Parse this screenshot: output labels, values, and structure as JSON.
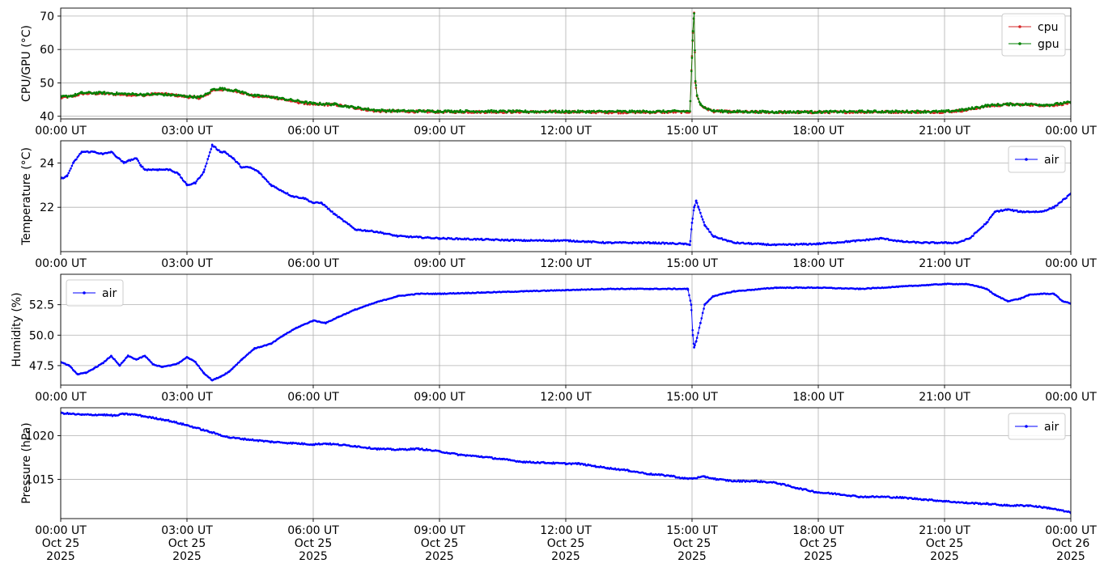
{
  "chart_data": [
    {
      "type": "line",
      "ylabel": "CPU/GPU (°C)",
      "ylim": [
        39.2,
        72.4
      ],
      "yticks": [
        40,
        50,
        60,
        70
      ],
      "ytick_labels": [
        "40",
        "50",
        "60",
        "70"
      ],
      "xlim": [
        0,
        24
      ],
      "xticks": [
        0,
        3,
        6,
        9,
        12,
        15,
        18,
        21,
        24
      ],
      "xtick_labels": [
        "00:00 UT",
        "03:00 UT",
        "06:00 UT",
        "09:00 UT",
        "12:00 UT",
        "15:00 UT",
        "18:00 UT",
        "21:00 UT",
        "00:00 UT"
      ],
      "grid": true,
      "legend_position": "top-right",
      "series": [
        {
          "name": "cpu",
          "color": "#d62728",
          "x": [
            0,
            0.3,
            0.5,
            1.0,
            1.5,
            2.0,
            2.3,
            2.6,
            3.0,
            3.3,
            3.5,
            3.6,
            3.8,
            4.2,
            4.6,
            5.0,
            5.5,
            6.0,
            6.5,
            7.0,
            7.5,
            8.0,
            9.0,
            10.0,
            11.0,
            12.0,
            13.0,
            14.0,
            14.95,
            15.0,
            15.02,
            15.05,
            15.08,
            15.12,
            15.2,
            15.3,
            15.5,
            16.0,
            17.0,
            18.0,
            19.0,
            20.0,
            21.0,
            21.5,
            22.0,
            22.5,
            23.0,
            23.5,
            24.0
          ],
          "values": [
            45.5,
            46.0,
            46.8,
            46.8,
            46.5,
            46.3,
            46.8,
            46.5,
            45.8,
            45.5,
            46.5,
            47.8,
            48.0,
            47.5,
            46.0,
            45.8,
            44.5,
            43.5,
            43.5,
            42.5,
            41.5,
            41.5,
            41.3,
            41.3,
            41.3,
            41.3,
            41.2,
            41.2,
            41.3,
            58,
            65,
            71,
            50,
            46,
            43.5,
            42.5,
            41.5,
            41.3,
            41.2,
            41.2,
            41.3,
            41.3,
            41.3,
            41.8,
            43.0,
            43.5,
            43.5,
            43.2,
            44.0
          ]
        },
        {
          "name": "gpu",
          "color": "#008000",
          "x": [
            0,
            0.3,
            0.5,
            1.0,
            1.5,
            2.0,
            2.3,
            2.6,
            3.0,
            3.3,
            3.5,
            3.6,
            3.8,
            4.2,
            4.6,
            5.0,
            5.5,
            6.0,
            6.5,
            7.0,
            7.5,
            8.0,
            9.0,
            10.0,
            11.0,
            12.0,
            13.0,
            14.0,
            14.95,
            15.0,
            15.02,
            15.05,
            15.08,
            15.12,
            15.2,
            15.3,
            15.5,
            16.0,
            17.0,
            18.0,
            19.0,
            20.0,
            21.0,
            21.5,
            22.0,
            22.5,
            23.0,
            23.5,
            24.0
          ],
          "values": [
            45.8,
            46.2,
            47.0,
            47.0,
            46.7,
            46.5,
            46.6,
            46.4,
            46.0,
            45.7,
            46.8,
            48.0,
            48.3,
            47.6,
            46.2,
            45.8,
            44.8,
            43.8,
            43.6,
            42.6,
            41.8,
            41.6,
            41.5,
            41.5,
            41.4,
            41.4,
            41.4,
            41.4,
            41.5,
            57.5,
            65.5,
            70.8,
            50.5,
            46.2,
            43.8,
            42.6,
            41.6,
            41.4,
            41.3,
            41.3,
            41.4,
            41.4,
            41.4,
            42.0,
            43.2,
            43.6,
            43.6,
            43.4,
            44.2
          ]
        }
      ]
    },
    {
      "type": "line",
      "ylabel": "Temperature (°C)",
      "ylim": [
        20.0,
        25.0
      ],
      "yticks": [
        22,
        24
      ],
      "ytick_labels": [
        "22",
        "24"
      ],
      "xlim": [
        0,
        24
      ],
      "xticks": [
        0,
        3,
        6,
        9,
        12,
        15,
        18,
        21,
        24
      ],
      "xtick_labels": [
        "00:00 UT",
        "03:00 UT",
        "06:00 UT",
        "09:00 UT",
        "12:00 UT",
        "15:00 UT",
        "18:00 UT",
        "21:00 UT",
        "00:00 UT"
      ],
      "grid": true,
      "legend_position": "top-right",
      "series": [
        {
          "name": "air",
          "color": "#0000ff",
          "x": [
            0,
            0.15,
            0.3,
            0.5,
            0.8,
            1.0,
            1.2,
            1.5,
            1.6,
            1.8,
            1.9,
            2.0,
            2.3,
            2.6,
            2.8,
            3.0,
            3.2,
            3.4,
            3.6,
            3.8,
            3.9,
            4.1,
            4.3,
            4.5,
            4.7,
            5.0,
            5.5,
            5.8,
            6.0,
            6.2,
            6.5,
            7.0,
            7.5,
            8.0,
            8.5,
            9.0,
            10.0,
            11.0,
            12.0,
            13.0,
            14.0,
            14.8,
            14.95,
            15.0,
            15.05,
            15.1,
            15.15,
            15.3,
            15.5,
            16.0,
            17.0,
            18.0,
            19.0,
            19.5,
            20.0,
            20.5,
            21.0,
            21.3,
            21.6,
            22.0,
            22.2,
            22.5,
            22.8,
            23.0,
            23.3,
            23.6,
            24.0
          ],
          "values": [
            23.3,
            23.4,
            24.0,
            24.5,
            24.5,
            24.4,
            24.5,
            24.0,
            24.1,
            24.2,
            23.9,
            23.7,
            23.7,
            23.7,
            23.5,
            23.0,
            23.1,
            23.6,
            24.8,
            24.5,
            24.5,
            24.2,
            23.8,
            23.8,
            23.6,
            23.0,
            22.5,
            22.4,
            22.2,
            22.2,
            21.7,
            21.0,
            20.9,
            20.7,
            20.65,
            20.6,
            20.55,
            20.5,
            20.5,
            20.4,
            20.4,
            20.35,
            20.3,
            21.3,
            22.0,
            22.3,
            22.0,
            21.2,
            20.7,
            20.4,
            20.3,
            20.35,
            20.5,
            20.6,
            20.45,
            20.4,
            20.4,
            20.4,
            20.6,
            21.3,
            21.8,
            21.9,
            21.8,
            21.8,
            21.8,
            22.0,
            22.6
          ]
        }
      ]
    },
    {
      "type": "line",
      "ylabel": "Humidity (%)",
      "ylim": [
        45.9,
        55.0
      ],
      "yticks": [
        47.5,
        50.0,
        52.5
      ],
      "ytick_labels": [
        "47.5",
        "50.0",
        "52.5"
      ],
      "xlim": [
        0,
        24
      ],
      "xticks": [
        0,
        3,
        6,
        9,
        12,
        15,
        18,
        21,
        24
      ],
      "xtick_labels": [
        "00:00 UT",
        "03:00 UT",
        "06:00 UT",
        "09:00 UT",
        "12:00 UT",
        "15:00 UT",
        "18:00 UT",
        "21:00 UT",
        "00:00 UT"
      ],
      "grid": true,
      "legend_position": "top-left",
      "series": [
        {
          "name": "air",
          "color": "#0000ff",
          "x": [
            0,
            0.2,
            0.4,
            0.6,
            0.8,
            1.0,
            1.2,
            1.4,
            1.6,
            1.8,
            2.0,
            2.2,
            2.4,
            2.6,
            2.8,
            3.0,
            3.2,
            3.4,
            3.6,
            3.8,
            4.0,
            4.3,
            4.6,
            5.0,
            5.3,
            5.6,
            6.0,
            6.3,
            6.6,
            7.0,
            7.5,
            8.0,
            8.5,
            9.0,
            10.0,
            11.0,
            12.0,
            13.0,
            14.0,
            14.9,
            14.98,
            15.02,
            15.05,
            15.1,
            15.2,
            15.3,
            15.5,
            16.0,
            17.0,
            18.0,
            19.0,
            20.0,
            21.0,
            21.5,
            21.8,
            22.0,
            22.2,
            22.5,
            22.8,
            23.0,
            23.3,
            23.6,
            23.8,
            24.0
          ],
          "values": [
            47.8,
            47.5,
            46.8,
            46.9,
            47.3,
            47.7,
            48.3,
            47.5,
            48.3,
            48.0,
            48.3,
            47.6,
            47.4,
            47.5,
            47.7,
            48.2,
            47.8,
            46.9,
            46.3,
            46.6,
            47.0,
            48.0,
            48.9,
            49.3,
            50.0,
            50.6,
            51.2,
            51.0,
            51.5,
            52.1,
            52.7,
            53.2,
            53.4,
            53.4,
            53.5,
            53.6,
            53.7,
            53.8,
            53.8,
            53.8,
            52.5,
            50.0,
            49.0,
            49.5,
            51.0,
            52.5,
            53.2,
            53.6,
            53.9,
            53.9,
            53.8,
            54.0,
            54.2,
            54.2,
            54.0,
            53.8,
            53.3,
            52.8,
            53.0,
            53.3,
            53.4,
            53.4,
            52.8,
            52.6
          ]
        }
      ]
    },
    {
      "type": "line",
      "ylabel": "Pressure (hPa)",
      "ylim": [
        1010.5,
        1023.2
      ],
      "yticks": [
        1015,
        1020
      ],
      "ytick_labels": [
        "1015",
        "1020"
      ],
      "xlim": [
        0,
        24
      ],
      "xticks": [
        0,
        3,
        6,
        9,
        12,
        15,
        18,
        21,
        24
      ],
      "xtick_labels": [
        "00:00 UT\nOct 25\n2025",
        "03:00 UT\nOct 25\n2025",
        "06:00 UT\nOct 25\n2025",
        "09:00 UT\nOct 25\n2025",
        "12:00 UT\nOct 25\n2025",
        "15:00 UT\nOct 25\n2025",
        "18:00 UT\nOct 25\n2025",
        "21:00 UT\nOct 25\n2025",
        "00:00 UT\nOct 26\n2025"
      ],
      "grid": true,
      "legend_position": "top-right",
      "series": [
        {
          "name": "air",
          "color": "#0000ff",
          "x": [
            0,
            0.5,
            1.0,
            1.3,
            1.5,
            1.8,
            2.0,
            2.5,
            3.0,
            3.5,
            4.0,
            5.0,
            6.0,
            6.3,
            7.0,
            7.5,
            8.0,
            8.5,
            9.0,
            9.5,
            10.0,
            10.5,
            11.0,
            11.5,
            12.0,
            12.3,
            12.7,
            13.0,
            13.5,
            14.0,
            14.5,
            14.8,
            15.0,
            15.3,
            15.6,
            16.0,
            16.5,
            17.0,
            17.5,
            18.0,
            18.5,
            19.0,
            19.5,
            20.0,
            20.5,
            21.0,
            21.5,
            22.0,
            22.5,
            23.0,
            23.5,
            24.0
          ],
          "values": [
            1022.6,
            1022.4,
            1022.4,
            1022.3,
            1022.5,
            1022.4,
            1022.2,
            1021.8,
            1021.2,
            1020.5,
            1019.8,
            1019.3,
            1019.0,
            1019.1,
            1018.8,
            1018.5,
            1018.4,
            1018.5,
            1018.2,
            1017.8,
            1017.6,
            1017.3,
            1017.0,
            1016.9,
            1016.8,
            1016.8,
            1016.5,
            1016.3,
            1016.0,
            1015.6,
            1015.4,
            1015.1,
            1015.1,
            1015.3,
            1015.0,
            1014.8,
            1014.8,
            1014.6,
            1014.0,
            1013.5,
            1013.3,
            1013.0,
            1013.0,
            1012.9,
            1012.7,
            1012.5,
            1012.3,
            1012.2,
            1012.0,
            1012.0,
            1011.7,
            1011.2
          ]
        }
      ]
    }
  ]
}
